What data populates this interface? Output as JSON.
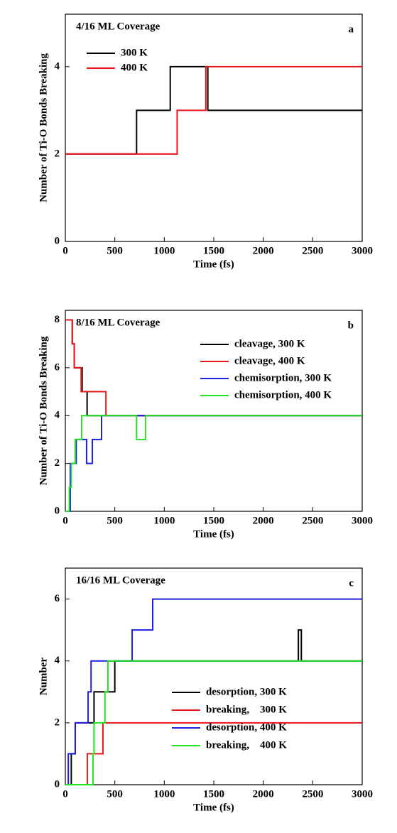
{
  "chart_data": [
    {
      "type": "line",
      "step": "post",
      "title": "4/16 ML Coverage",
      "panel_label": "a",
      "xlabel": "Time (fs)",
      "ylabel": "Number of Ti-O Bonds Breaking",
      "xlim": [
        0,
        3000
      ],
      "xticks": [
        0,
        500,
        1000,
        1500,
        2000,
        2500,
        3000
      ],
      "ylim": [
        0,
        5.2
      ],
      "yticks": [
        0,
        2,
        4
      ],
      "legend": "upper left",
      "series": [
        {
          "name": "300 K",
          "color": "#000000",
          "x": [
            0,
            720,
            1060,
            1440,
            3000
          ],
          "values": [
            2,
            3,
            4,
            3,
            3
          ]
        },
        {
          "name": "400 K",
          "color": "#e8161b",
          "x": [
            0,
            1130,
            1420,
            3000
          ],
          "values": [
            2,
            3,
            4,
            4
          ]
        }
      ]
    },
    {
      "type": "line",
      "step": "post",
      "title": "8/16 ML Coverage",
      "panel_label": "b",
      "xlabel": "Time (fs)",
      "ylabel": "Number of Ti-O Bonds Breaking",
      "xlim": [
        0,
        3000
      ],
      "xticks": [
        0,
        500,
        1000,
        1500,
        2000,
        2500,
        3000
      ],
      "ylim": [
        0,
        8.4
      ],
      "yticks": [
        0,
        2,
        4,
        6,
        8
      ],
      "legend": "upper right",
      "series": [
        {
          "name": "cleavage, 300 K",
          "color": "#000000",
          "x": [
            0,
            70,
            90,
            170,
            220,
            3000
          ],
          "values": [
            8,
            7,
            6,
            5,
            4,
            4
          ]
        },
        {
          "name": "cleavage, 400 K",
          "color": "#e8161b",
          "x": [
            0,
            70,
            90,
            160,
            410,
            3000
          ],
          "values": [
            8,
            7,
            6,
            5,
            4,
            4
          ]
        },
        {
          "name": "chemisorption, 300 K",
          "color": "#1f1fe0",
          "x": [
            0,
            50,
            110,
            215,
            273,
            366,
            3000
          ],
          "values": [
            0,
            2,
            3,
            2,
            3,
            4,
            4
          ]
        },
        {
          "name": "chemisorption, 400 K",
          "color": "#22e322",
          "x": [
            0,
            40,
            60,
            100,
            165,
            720,
            810,
            3000
          ],
          "values": [
            0,
            1,
            2,
            3,
            4,
            3,
            4,
            4
          ]
        }
      ]
    },
    {
      "type": "line",
      "step": "post",
      "title": "16/16 ML Coverage",
      "panel_label": "c",
      "xlabel": "Time (fs)",
      "ylabel": "Number",
      "xlim": [
        0,
        3000
      ],
      "xticks": [
        0,
        500,
        1000,
        1500,
        2000,
        2500,
        3000
      ],
      "ylim": [
        0,
        7
      ],
      "yticks": [
        0,
        2,
        4,
        6
      ],
      "legend": "lower right",
      "series": [
        {
          "name": "desorption, 300 K",
          "color": "#000000",
          "x": [
            0,
            60,
            100,
            290,
            500,
            2355,
            2385,
            3000
          ],
          "values": [
            0,
            1,
            2,
            3,
            4,
            5,
            4,
            4
          ]
        },
        {
          "name": "breaking,    300 K",
          "color": "#e8161b",
          "x": [
            0,
            222,
            380,
            3000
          ],
          "values": [
            0,
            1,
            2,
            2
          ]
        },
        {
          "name": "desorption, 400 K",
          "color": "#1f1fe0",
          "x": [
            0,
            30,
            100,
            230,
            260,
            675,
            883,
            3000
          ],
          "values": [
            0,
            1,
            2,
            3,
            4,
            5,
            6,
            6
          ]
        },
        {
          "name": "breaking,    400 K",
          "color": "#22e322",
          "x": [
            0,
            280,
            290,
            400,
            430,
            3000
          ],
          "values": [
            0,
            1,
            2,
            3,
            4,
            4
          ]
        }
      ]
    }
  ]
}
